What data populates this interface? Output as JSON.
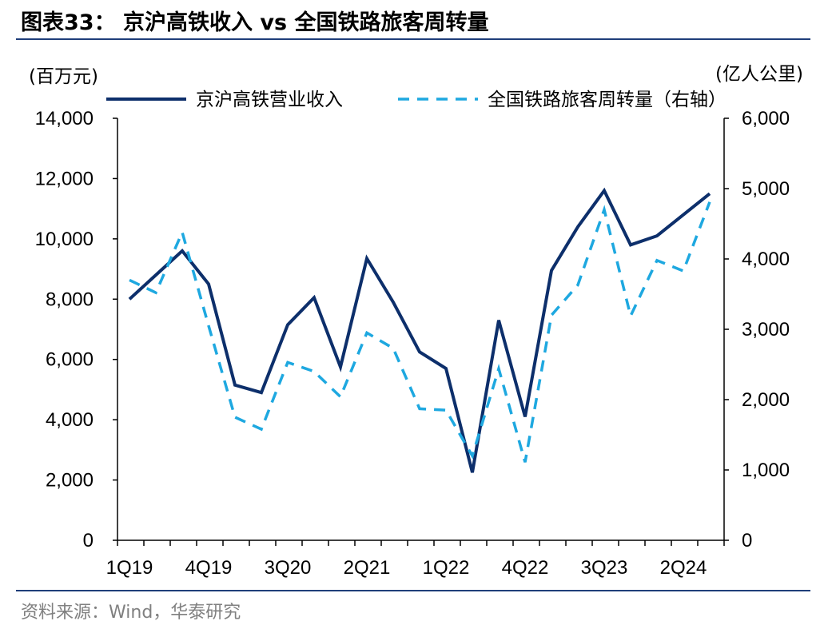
{
  "title": "图表33：  京沪高铁收入 vs 全国铁路旅客周转量",
  "source": "资料来源：Wind，华泰研究",
  "colors": {
    "series1": "#0d2f6b",
    "series2": "#1ea8e0"
  },
  "chart_data": {
    "type": "line",
    "left_unit": "(百万元)",
    "right_unit": "(亿人公里)",
    "categories": [
      "1Q19",
      "2Q19",
      "3Q19",
      "4Q19",
      "1Q20",
      "2Q20",
      "3Q20",
      "4Q20",
      "1Q21",
      "2Q21",
      "3Q21",
      "4Q21",
      "1Q22",
      "2Q22",
      "3Q22",
      "4Q22",
      "1Q23",
      "2Q23",
      "3Q23",
      "4Q23",
      "1Q24",
      "2Q24",
      "3Q24"
    ],
    "x_tick_labels": [
      "1Q19",
      "4Q19",
      "3Q20",
      "2Q21",
      "1Q22",
      "4Q22",
      "3Q23",
      "2Q24"
    ],
    "y_left": {
      "min": 0,
      "max": 14000,
      "ticks": [
        "0",
        "2,000",
        "4,000",
        "6,000",
        "8,000",
        "10,000",
        "12,000",
        "14,000"
      ]
    },
    "y_right": {
      "min": 0,
      "max": 6000,
      "ticks": [
        "0",
        "1,000",
        "2,000",
        "3,000",
        "4,000",
        "5,000",
        "6,000"
      ]
    },
    "grid": false,
    "legend_position": "top",
    "series": [
      {
        "name": "京沪高铁营业收入",
        "axis": "left",
        "style": "solid",
        "values": [
          8000,
          8800,
          9600,
          8500,
          5150,
          4900,
          7150,
          8050,
          5750,
          9350,
          7900,
          6250,
          5700,
          2250,
          7300,
          4100,
          8950,
          10400,
          11600,
          9800,
          10100,
          10800,
          11500
        ]
      },
      {
        "name": "全国铁路旅客周转量（右轴）",
        "axis": "right",
        "style": "dashed",
        "values": [
          3700,
          3520,
          4380,
          3050,
          1750,
          1580,
          2530,
          2400,
          2040,
          2950,
          2730,
          1870,
          1850,
          1200,
          2440,
          1110,
          3200,
          3630,
          4700,
          3190,
          3980,
          3830,
          4810
        ]
      }
    ]
  }
}
